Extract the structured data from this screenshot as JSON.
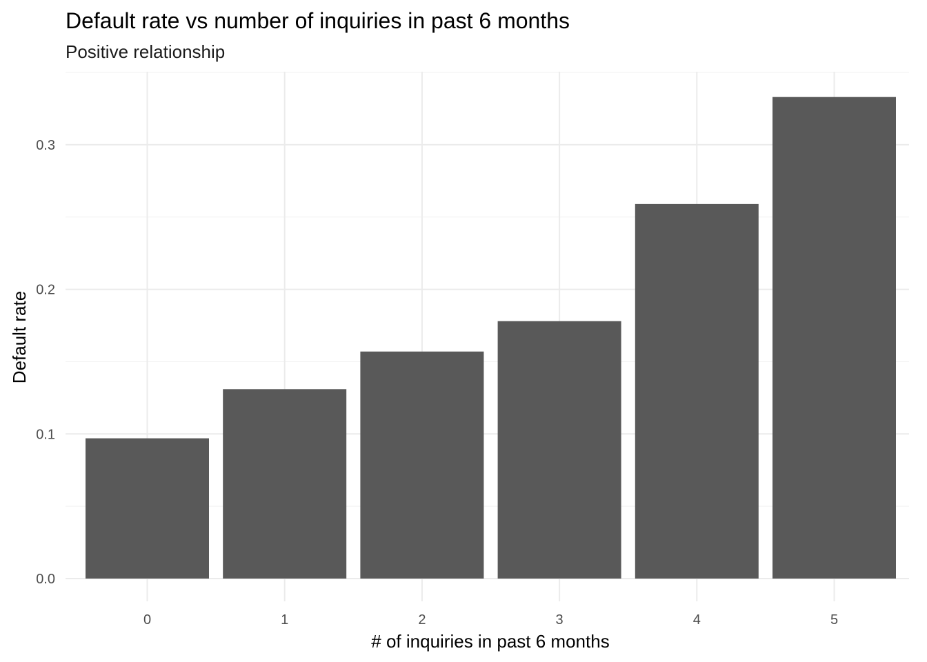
{
  "chart_data": {
    "type": "bar",
    "title": "Default rate vs number of inquiries in past 6 months",
    "subtitle": "Positive relationship",
    "xlabel": "# of inquiries in past 6 months",
    "ylabel": "Default rate",
    "categories": [
      "0",
      "1",
      "2",
      "3",
      "4",
      "5"
    ],
    "values": [
      0.097,
      0.131,
      0.157,
      0.178,
      0.259,
      0.333
    ],
    "ylim": [
      0,
      0.35
    ],
    "yticks": [
      0.0,
      0.1,
      0.2,
      0.3
    ],
    "ytick_labels": [
      "0.0",
      "0.1",
      "0.2",
      "0.3"
    ],
    "grid": true,
    "legend": "none",
    "bar_color": "#595959",
    "grid_color": "#ebebeb",
    "background": "#ffffff"
  }
}
